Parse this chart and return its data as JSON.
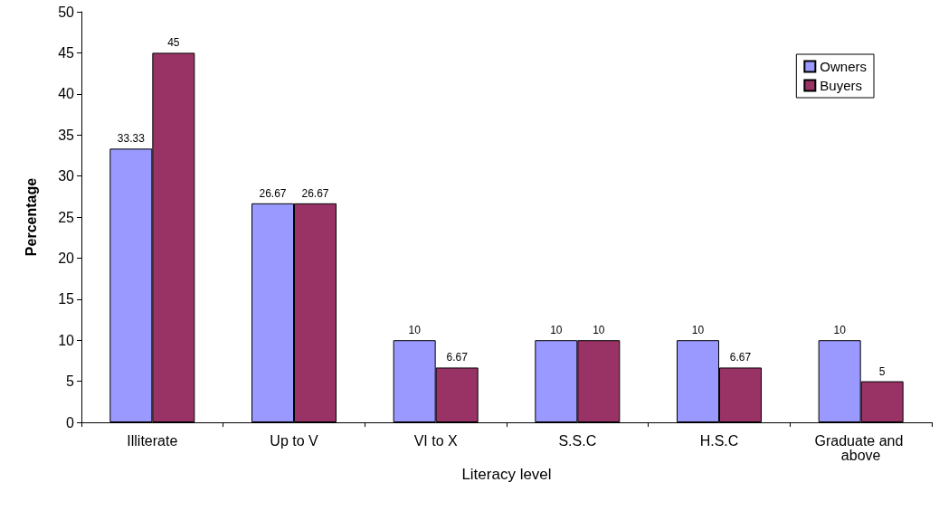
{
  "chart_data": {
    "type": "bar",
    "xlabel": "Literacy level",
    "ylabel": "Percentage",
    "categories": [
      "Illiterate",
      "Up to V",
      "VI to X",
      "S.S.C",
      "H.S.C",
      "Graduate and above"
    ],
    "series": [
      {
        "name": "Owners",
        "color": "#9999ff",
        "values": [
          33.33,
          26.67,
          10,
          10,
          10,
          10
        ]
      },
      {
        "name": "Buyers",
        "color": "#993366",
        "values": [
          45,
          26.67,
          6.67,
          10,
          6.67,
          5
        ]
      }
    ],
    "ylim": [
      0,
      50
    ],
    "yticks": [
      0,
      5,
      10,
      15,
      20,
      25,
      30,
      35,
      40,
      45,
      50
    ],
    "grid": false,
    "legend": "top right",
    "data_labels": true
  }
}
